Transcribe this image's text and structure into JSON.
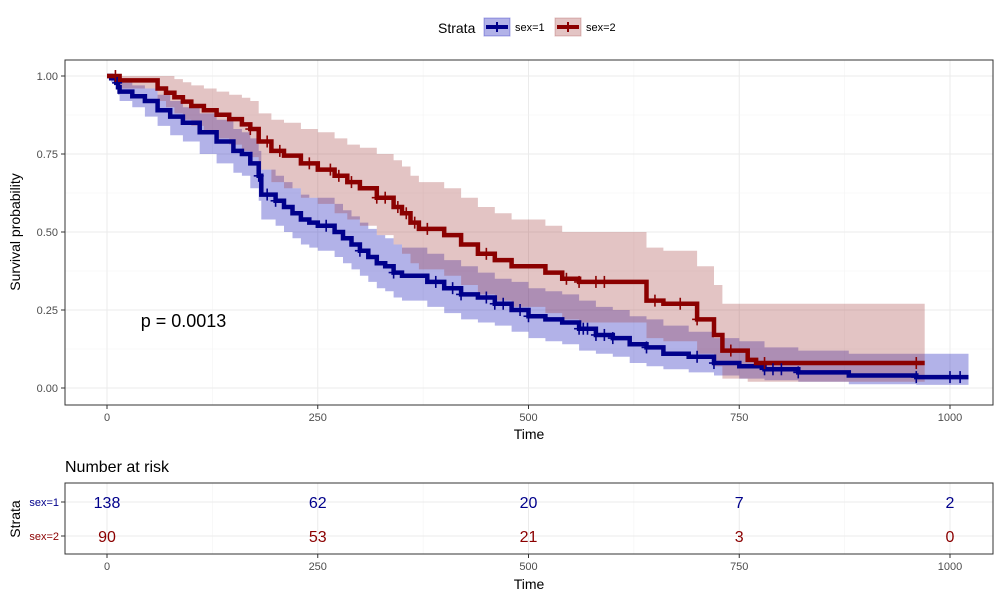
{
  "chart_data": [
    {
      "type": "line",
      "subtype": "kaplan-meier",
      "xlabel": "Time",
      "ylabel": "Survival probability",
      "xlim": [
        0,
        1022
      ],
      "ylim": [
        0,
        1
      ],
      "x_ticks": [
        0,
        250,
        500,
        750,
        1000
      ],
      "y_ticks": [
        "0.00",
        "0.25",
        "0.50",
        "0.75",
        "1.00"
      ],
      "y_tick_values": [
        0,
        0.25,
        0.5,
        0.75,
        1.0
      ],
      "grid": true,
      "legend_position": "top",
      "legend_title": "Strata",
      "annotation": "p = 0.0013",
      "annotation_at": {
        "x": 40,
        "y": 0.195
      },
      "series": [
        {
          "name": "sex=1",
          "color": "#00008B",
          "band_color": "#0000B3",
          "x": [
            0,
            5,
            11,
            13,
            15,
            30,
            45,
            60,
            75,
            90,
            110,
            130,
            150,
            160,
            170,
            180,
            183,
            200,
            210,
            220,
            230,
            240,
            250,
            270,
            280,
            290,
            300,
            310,
            320,
            330,
            340,
            350,
            380,
            400,
            420,
            440,
            460,
            480,
            500,
            520,
            540,
            560,
            580,
            600,
            620,
            640,
            660,
            690,
            720,
            750,
            780,
            820,
            880,
            960,
            1022
          ],
          "y": [
            1.0,
            0.993,
            0.978,
            0.964,
            0.95,
            0.935,
            0.92,
            0.89,
            0.87,
            0.85,
            0.82,
            0.79,
            0.76,
            0.75,
            0.72,
            0.68,
            0.62,
            0.6,
            0.58,
            0.56,
            0.54,
            0.53,
            0.52,
            0.5,
            0.48,
            0.46,
            0.44,
            0.42,
            0.4,
            0.39,
            0.37,
            0.36,
            0.34,
            0.32,
            0.3,
            0.29,
            0.27,
            0.25,
            0.23,
            0.22,
            0.21,
            0.19,
            0.17,
            0.16,
            0.14,
            0.13,
            0.11,
            0.1,
            0.08,
            0.07,
            0.06,
            0.05,
            0.04,
            0.035,
            0.035
          ],
          "lower": [
            1.0,
            0.98,
            0.96,
            0.94,
            0.92,
            0.9,
            0.87,
            0.84,
            0.81,
            0.79,
            0.75,
            0.72,
            0.69,
            0.68,
            0.64,
            0.6,
            0.54,
            0.52,
            0.5,
            0.48,
            0.46,
            0.45,
            0.44,
            0.42,
            0.4,
            0.38,
            0.36,
            0.34,
            0.32,
            0.31,
            0.29,
            0.28,
            0.26,
            0.24,
            0.22,
            0.21,
            0.2,
            0.18,
            0.16,
            0.15,
            0.14,
            0.12,
            0.11,
            0.1,
            0.08,
            0.07,
            0.06,
            0.05,
            0.04,
            0.03,
            0.025,
            0.02,
            0.012,
            0.01,
            0.01
          ],
          "upper": [
            1.0,
            1.0,
            1.0,
            0.99,
            0.98,
            0.97,
            0.96,
            0.94,
            0.92,
            0.9,
            0.88,
            0.86,
            0.83,
            0.82,
            0.8,
            0.76,
            0.7,
            0.68,
            0.66,
            0.64,
            0.62,
            0.61,
            0.61,
            0.59,
            0.57,
            0.55,
            0.53,
            0.51,
            0.49,
            0.48,
            0.46,
            0.45,
            0.43,
            0.41,
            0.39,
            0.37,
            0.35,
            0.34,
            0.32,
            0.31,
            0.3,
            0.28,
            0.26,
            0.25,
            0.23,
            0.22,
            0.2,
            0.18,
            0.16,
            0.15,
            0.13,
            0.12,
            0.11,
            0.11,
            0.11
          ],
          "censor_x": [
            12,
            180,
            190,
            200,
            260,
            300,
            340,
            390,
            410,
            420,
            450,
            460,
            470,
            490,
            500,
            560,
            565,
            570,
            580,
            590,
            600,
            640,
            700,
            720,
            780,
            790,
            800,
            820,
            960,
            1000,
            1012
          ]
        },
        {
          "name": "sex=2",
          "color": "#8B0000",
          "band_color": "#A33A3A",
          "x": [
            0,
            10,
            15,
            60,
            70,
            80,
            90,
            100,
            115,
            130,
            145,
            160,
            170,
            180,
            195,
            210,
            230,
            250,
            270,
            285,
            300,
            320,
            340,
            350,
            360,
            370,
            380,
            400,
            420,
            440,
            460,
            480,
            520,
            540,
            560,
            640,
            660,
            700,
            720,
            730,
            760,
            770,
            960,
            970
          ],
          "y": [
            1.0,
            1.0,
            0.986,
            0.96,
            0.946,
            0.932,
            0.918,
            0.904,
            0.89,
            0.876,
            0.862,
            0.845,
            0.83,
            0.79,
            0.76,
            0.745,
            0.72,
            0.7,
            0.68,
            0.66,
            0.64,
            0.61,
            0.58,
            0.56,
            0.53,
            0.51,
            0.51,
            0.49,
            0.46,
            0.43,
            0.41,
            0.39,
            0.37,
            0.35,
            0.34,
            0.28,
            0.27,
            0.22,
            0.17,
            0.12,
            0.09,
            0.08,
            0.08,
            0.08
          ],
          "lower": [
            1.0,
            1.0,
            0.96,
            0.92,
            0.9,
            0.88,
            0.86,
            0.84,
            0.82,
            0.8,
            0.78,
            0.76,
            0.74,
            0.7,
            0.66,
            0.64,
            0.61,
            0.59,
            0.56,
            0.54,
            0.52,
            0.49,
            0.46,
            0.43,
            0.4,
            0.38,
            0.38,
            0.36,
            0.33,
            0.3,
            0.28,
            0.26,
            0.24,
            0.22,
            0.21,
            0.16,
            0.15,
            0.11,
            0.07,
            0.03,
            0.02,
            0.02,
            0.02,
            0.02
          ],
          "upper": [
            1.0,
            1.0,
            1.0,
            1.0,
            1.0,
            0.99,
            0.98,
            0.97,
            0.96,
            0.95,
            0.94,
            0.93,
            0.92,
            0.88,
            0.86,
            0.85,
            0.83,
            0.82,
            0.8,
            0.78,
            0.77,
            0.75,
            0.73,
            0.71,
            0.68,
            0.66,
            0.66,
            0.64,
            0.61,
            0.58,
            0.56,
            0.54,
            0.52,
            0.5,
            0.5,
            0.45,
            0.44,
            0.39,
            0.33,
            0.27,
            0.27,
            0.27,
            0.27,
            0.27
          ],
          "censor_x": [
            10,
            170,
            190,
            205,
            240,
            265,
            275,
            290,
            320,
            330,
            345,
            355,
            365,
            380,
            450,
            545,
            560,
            580,
            590,
            650,
            680,
            700,
            740,
            780,
            960
          ]
        }
      ]
    },
    {
      "type": "table",
      "title": "Number at risk",
      "xlabel": "Time",
      "ylabel": "Strata",
      "x_ticks": [
        0,
        250,
        500,
        750,
        1000
      ],
      "rows": [
        {
          "name": "sex=1",
          "color": "#00008B",
          "values": [
            138,
            62,
            20,
            7,
            2
          ]
        },
        {
          "name": "sex=2",
          "color": "#8B0000",
          "values": [
            90,
            53,
            21,
            3,
            0
          ]
        }
      ]
    }
  ]
}
